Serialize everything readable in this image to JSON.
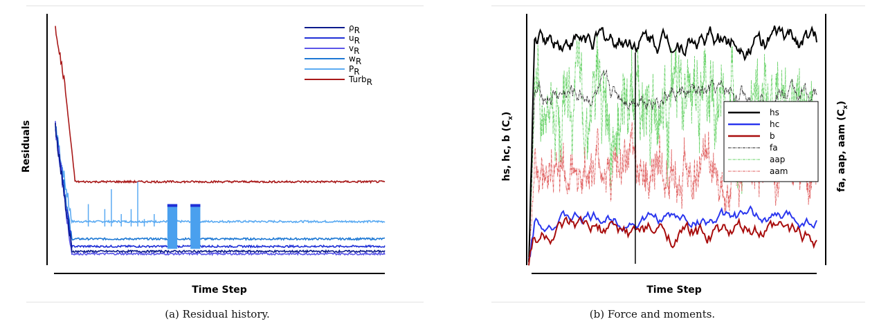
{
  "chart_data": [
    {
      "type": "line",
      "caption": "(a) Residual history.",
      "xlabel": "Time Step",
      "ylabel": "Residuals",
      "legend_position": "top-right",
      "series": [
        {
          "name": "ρ",
          "sub": "R",
          "color": "#0b1a8c",
          "values": [
            0.05,
            0.05,
            0.05,
            0.05,
            0.05,
            0.05
          ]
        },
        {
          "name": "u",
          "sub": "R",
          "color": "#1f2fd6",
          "values": [
            0.07,
            0.07,
            0.07,
            0.07,
            0.07,
            0.07
          ]
        },
        {
          "name": "v",
          "sub": "R",
          "color": "#5a55e8",
          "values": [
            0.04,
            0.04,
            0.04,
            0.04,
            0.04,
            0.04
          ]
        },
        {
          "name": "w",
          "sub": "R",
          "color": "#1d78d4",
          "values": [
            0.1,
            0.1,
            0.1,
            0.1,
            0.1,
            0.1
          ]
        },
        {
          "name": "P",
          "sub": "R",
          "color": "#5aaaf2",
          "values": [
            0.17,
            0.17,
            0.17,
            0.17,
            0.17,
            0.17
          ]
        },
        {
          "name": "Turb",
          "sub": "R",
          "color": "#a81818",
          "values": [
            0.95,
            0.7,
            0.33,
            0.33,
            0.33,
            0.33
          ]
        }
      ],
      "x": [
        0,
        0.03,
        0.06,
        0.3,
        0.7,
        1.0
      ]
    },
    {
      "type": "line",
      "caption": "(b) Force and moments.",
      "xlabel": "Time Step",
      "ylabel_left": "hs, hc, b (C",
      "ylabel_left_sub": "x",
      "ylabel_right": "fa, aap, aam (C",
      "ylabel_right_sub": "x",
      "legend_position": "right",
      "series": [
        {
          "name": "hs",
          "color": "#000000",
          "style": "solid",
          "level": 0.9
        },
        {
          "name": "hc",
          "color": "#2a36ee",
          "style": "solid",
          "level": 0.18
        },
        {
          "name": "b",
          "color": "#a80c0c",
          "style": "solid",
          "level": 0.12
        },
        {
          "name": "fa",
          "color": "#222222",
          "style": "dashdot",
          "level": 0.68
        },
        {
          "name": "aap",
          "color": "#6ad36a",
          "style": "dashdot",
          "level": 0.65
        },
        {
          "name": "aam",
          "color": "#e06060",
          "style": "dashdot",
          "level": 0.38
        }
      ]
    }
  ]
}
